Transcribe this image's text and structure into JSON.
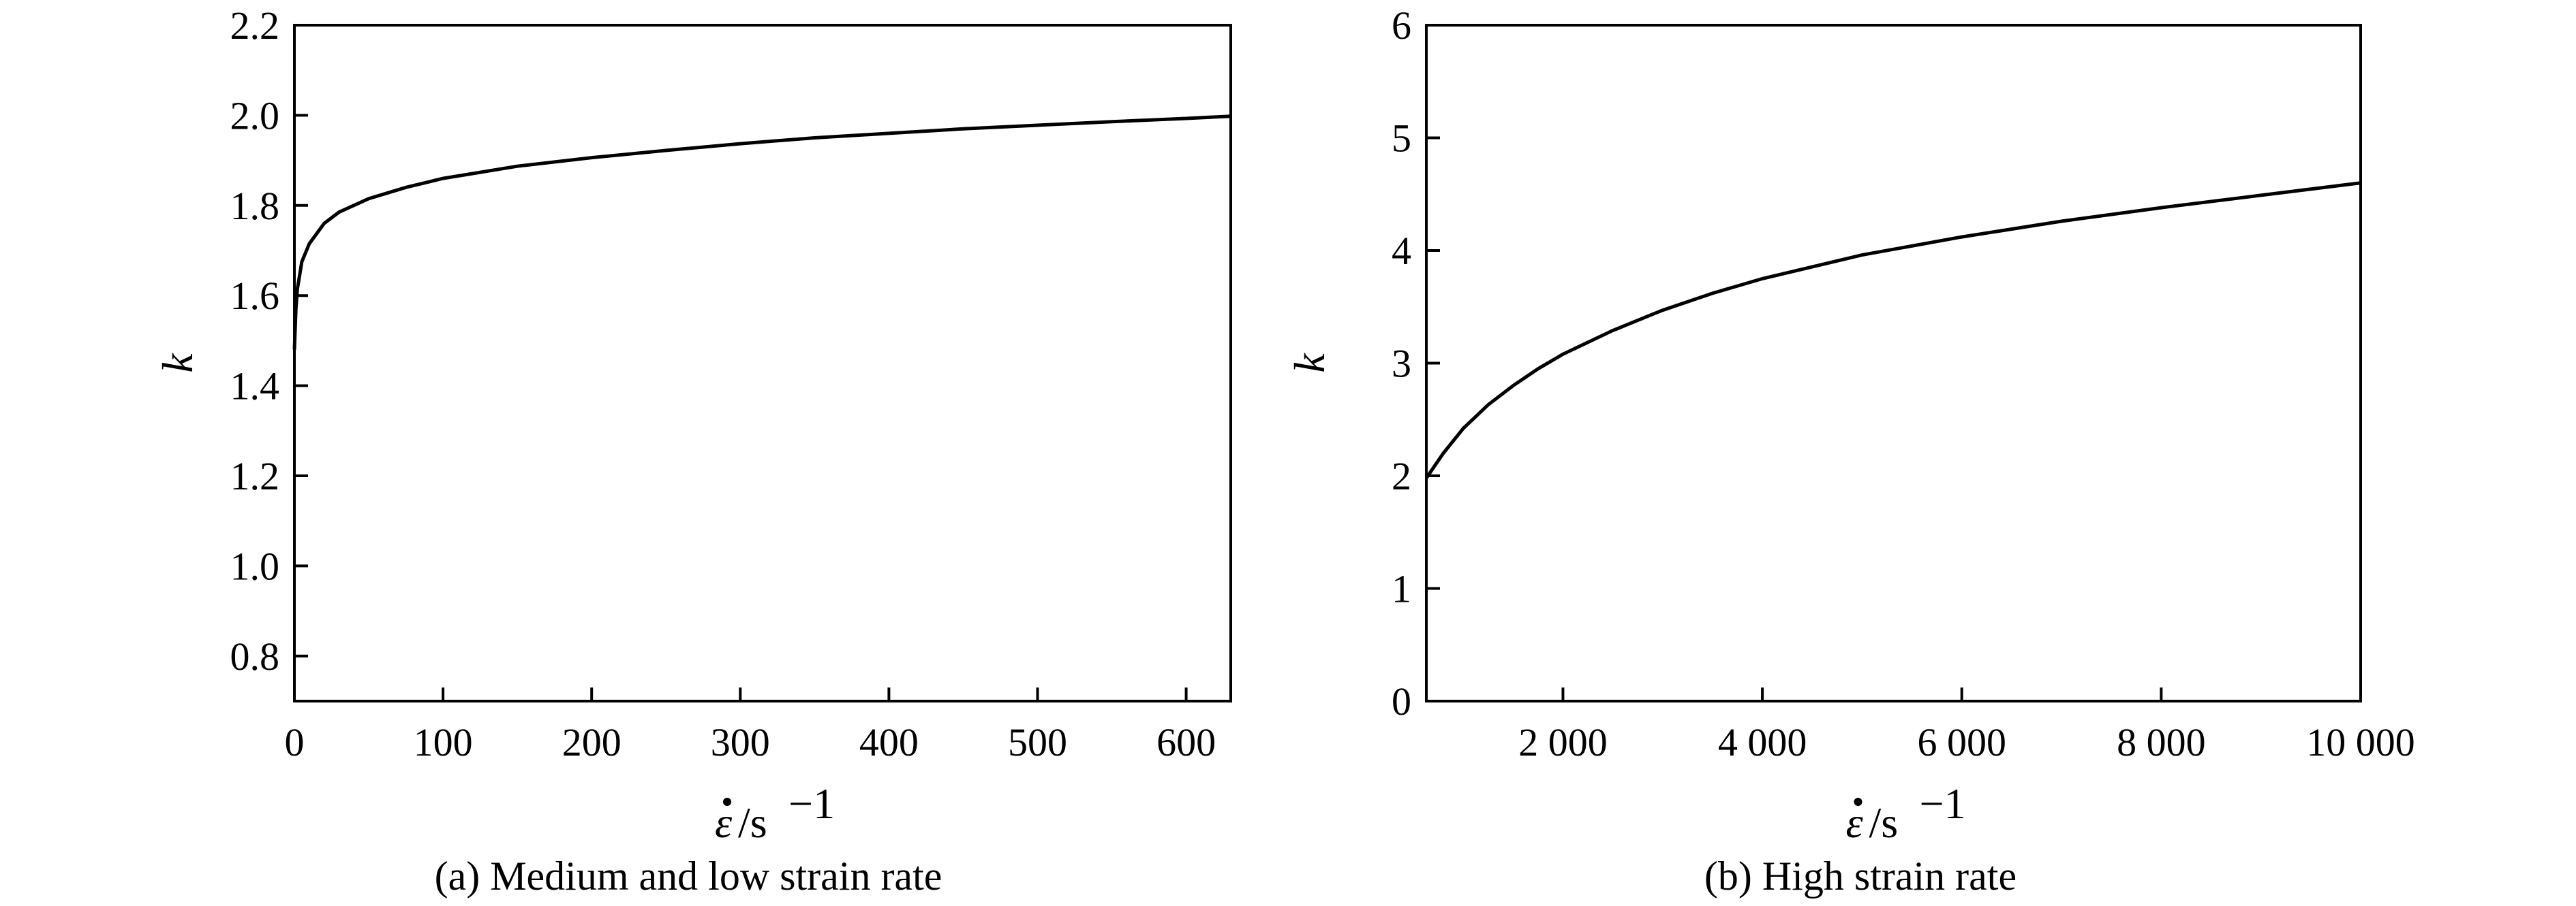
{
  "chart_data": [
    {
      "type": "line",
      "caption": "(a) Medium and low strain rate",
      "xlabel": {
        "symbol": "ε",
        "unit": "/s",
        "exponent": "−1"
      },
      "ylabel": "k",
      "xlim": [
        0,
        630
      ],
      "ylim": [
        0.7,
        2.2
      ],
      "xticks": [
        0,
        100,
        200,
        300,
        400,
        500,
        600
      ],
      "xtick_labels": [
        "0",
        "100",
        "200",
        "300",
        "400",
        "500",
        "600"
      ],
      "yticks": [
        0.8,
        1.0,
        1.2,
        1.4,
        1.6,
        1.8,
        2.0,
        2.2
      ],
      "ytick_labels": [
        "0.8",
        "1.0",
        "1.2",
        "1.4",
        "1.6",
        "1.8",
        "2.0",
        "2.2"
      ],
      "grid": false,
      "series": [
        {
          "color": "#000000",
          "x": [
            0.02,
            1,
            2,
            5,
            10,
            20,
            30,
            50,
            75,
            100,
            150,
            200,
            250,
            300,
            350,
            400,
            450,
            500,
            550,
            600,
            630
          ],
          "y": [
            1.48,
            1.57,
            1.615,
            1.675,
            1.715,
            1.76,
            1.785,
            1.815,
            1.84,
            1.86,
            1.887,
            1.906,
            1.922,
            1.937,
            1.95,
            1.96,
            1.97,
            1.978,
            1.986,
            1.993,
            1.998
          ]
        }
      ]
    },
    {
      "type": "line",
      "caption": "(b) High strain rate",
      "xlabel": {
        "symbol": "ε",
        "unit": "/s",
        "exponent": "−1"
      },
      "ylabel": "k",
      "xlim": [
        630,
        10000
      ],
      "ylim": [
        0,
        6
      ],
      "xticks": [
        2000,
        4000,
        6000,
        8000,
        10000
      ],
      "xtick_labels": [
        "2 000",
        "4 000",
        "6 000",
        "8 000",
        "10 000"
      ],
      "yticks": [
        0,
        1,
        2,
        3,
        4,
        5,
        6
      ],
      "ytick_labels": [
        "0",
        "1",
        "2",
        "3",
        "4",
        "5",
        "6"
      ],
      "grid": false,
      "series": [
        {
          "color": "#000000",
          "x": [
            630,
            800,
            1000,
            1250,
            1500,
            1750,
            2000,
            2500,
            3000,
            3500,
            4000,
            5000,
            6000,
            7000,
            8000,
            9000,
            10000
          ],
          "y": [
            1.98,
            2.2,
            2.42,
            2.63,
            2.8,
            2.95,
            3.08,
            3.29,
            3.47,
            3.62,
            3.75,
            3.96,
            4.12,
            4.26,
            4.38,
            4.49,
            4.6
          ]
        }
      ]
    }
  ]
}
